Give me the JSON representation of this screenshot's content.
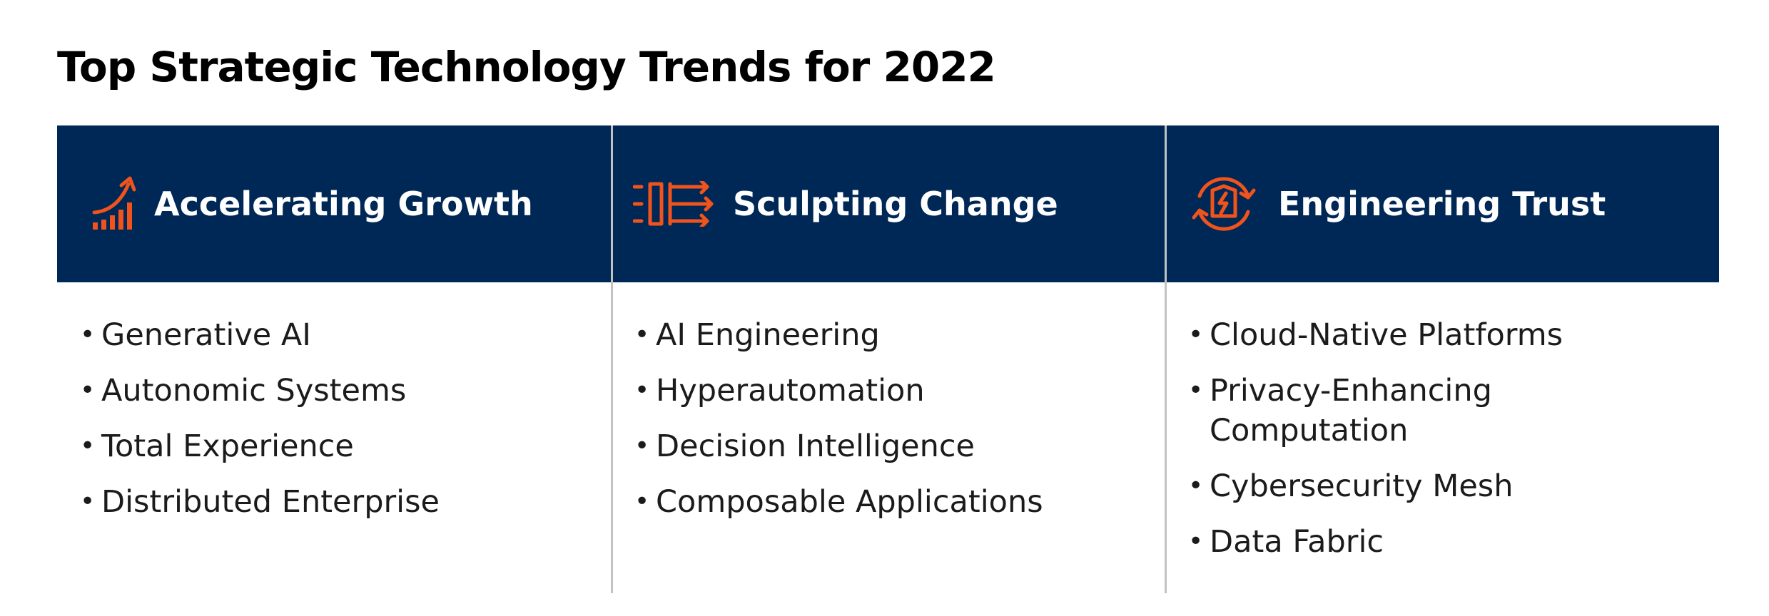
{
  "title": "Top Strategic Technology Trends for 2022",
  "colors": {
    "header_bg": "#002856",
    "icon_accent": "#F0531C",
    "divider": "#C2C2C2"
  },
  "columns": [
    {
      "icon": "growth-chart-icon",
      "header": "Accelerating Growth",
      "items": [
        "Generative AI",
        "Autonomic Systems",
        "Total Experience",
        "Distributed Enterprise"
      ]
    },
    {
      "icon": "sculpting-arrows-icon",
      "header": "Sculpting Change",
      "items": [
        "AI Engineering",
        "Hyperautomation",
        "Decision Intelligence",
        "Composable Applications"
      ]
    },
    {
      "icon": "shield-cycle-icon",
      "header": "Engineering Trust",
      "items": [
        "Cloud-Native Platforms",
        "Privacy-Enhancing Computation",
        "Cybersecurity Mesh",
        "Data Fabric"
      ]
    }
  ]
}
